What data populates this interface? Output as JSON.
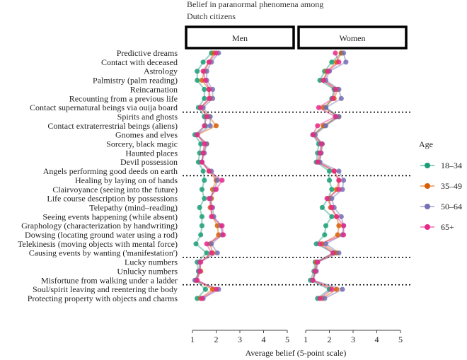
{
  "chart_data": {
    "type": "line",
    "title_lines": [
      "Belief in paranormal phenomena among",
      "Dutch citizens"
    ],
    "xlabel": "Average belief (5-point scale)",
    "xlim": [
      1,
      5
    ],
    "xticks": [
      "1",
      "2",
      "3",
      "4",
      "5"
    ],
    "facets": [
      "Men",
      "Women"
    ],
    "legend_title": "Age",
    "series": [
      {
        "name": "18–34",
        "color": "#1b9e77"
      },
      {
        "name": "35–49",
        "color": "#d95f02"
      },
      {
        "name": "50–64",
        "color": "#7570b3"
      },
      {
        "name": "65+",
        "color": "#e7298a"
      }
    ],
    "categories": [
      "Predictive dreams",
      "Contact with deceased",
      "Astrology",
      "Palmistry (palm reading)",
      "Reincarnation",
      "Recounting from a previous life",
      "Contact supernatural beings via ouija board",
      "Spirits and ghosts",
      "Contact extraterrestrial beings (aliens)",
      "Gnomes and elves",
      "Sorcery, black magic",
      "Haunted places",
      "Devil possession",
      "Angels performing good deeds on earth",
      "Healing by laying on of hands",
      "Clairvoyance (seeing into the future)",
      "Life course description by possessions",
      "Telepathy (mind–reading)",
      "Seeing events happening (while absent)",
      "Graphology (characterization by handwriting)",
      "Dowsing (locating ground water using a rod)",
      "Telekinesis (moving objects with mental force)",
      "Causing events by wanting ('manifestation')",
      "Lucky numbers",
      "Unlucky numbers",
      "Misfortune from walking under a ladder",
      "Soul/spirit leaving and reentering the body",
      "Protecting property with objects and charms"
    ],
    "group_breaks_after": [
      6,
      13,
      22,
      25
    ],
    "values": {
      "Men": {
        "18–34": [
          1.8,
          1.45,
          1.2,
          1.2,
          1.5,
          1.5,
          1.25,
          1.5,
          1.55,
          1.1,
          1.35,
          1.3,
          1.25,
          1.45,
          1.5,
          1.4,
          1.5,
          1.3,
          1.4,
          1.4,
          1.35,
          1.15,
          1.6,
          1.2,
          1.25,
          1.15,
          1.55,
          1.2
        ],
        "35–49": [
          1.9,
          1.7,
          1.5,
          1.4,
          1.7,
          1.75,
          1.35,
          1.7,
          2.0,
          1.2,
          1.6,
          1.45,
          1.4,
          1.7,
          2.0,
          1.85,
          1.8,
          1.75,
          1.85,
          2.05,
          2.1,
          1.75,
          1.85,
          1.3,
          1.35,
          1.15,
          1.85,
          1.35
        ],
        "50–64": [
          2.1,
          1.8,
          1.6,
          1.6,
          1.85,
          1.85,
          1.45,
          1.75,
          1.75,
          1.2,
          1.6,
          1.5,
          1.4,
          1.8,
          2.05,
          1.95,
          1.75,
          1.85,
          1.9,
          2.2,
          2.25,
          1.8,
          2.05,
          1.3,
          1.3,
          1.1,
          2.1,
          1.45
        ],
        "65+": [
          2.0,
          1.7,
          1.45,
          1.55,
          1.7,
          1.7,
          1.35,
          1.6,
          1.5,
          1.2,
          1.5,
          1.45,
          1.4,
          1.7,
          2.25,
          2.0,
          1.7,
          1.8,
          1.8,
          2.25,
          2.3,
          1.6,
          1.8,
          1.35,
          1.3,
          1.2,
          2.0,
          1.4
        ]
      },
      "Women": {
        "18–34": [
          2.5,
          2.1,
          1.8,
          1.6,
          2.2,
          2.1,
          1.85,
          2.3,
          1.8,
          1.3,
          1.55,
          1.5,
          1.45,
          2.0,
          2.0,
          2.1,
          1.95,
          1.7,
          2.1,
          1.85,
          1.8,
          1.45,
          2.2,
          1.4,
          1.35,
          1.2,
          2.0,
          1.5
        ],
        "35–49": [
          2.5,
          2.3,
          1.9,
          1.75,
          2.35,
          2.2,
          1.75,
          2.4,
          1.75,
          1.35,
          1.7,
          1.65,
          1.55,
          2.2,
          2.4,
          2.3,
          2.0,
          2.05,
          2.3,
          2.4,
          2.35,
          1.7,
          2.3,
          1.45,
          1.4,
          1.3,
          2.3,
          1.7
        ],
        "50–64": [
          2.6,
          2.7,
          2.0,
          1.85,
          2.4,
          2.5,
          1.85,
          2.4,
          1.85,
          1.4,
          1.7,
          1.65,
          1.6,
          2.4,
          2.6,
          2.55,
          2.1,
          2.2,
          2.5,
          2.6,
          2.55,
          1.85,
          2.4,
          1.5,
          1.45,
          1.3,
          2.55,
          1.8
        ],
        "65+": [
          2.25,
          2.4,
          1.95,
          1.75,
          2.25,
          2.15,
          1.55,
          2.25,
          1.5,
          1.3,
          1.65,
          1.6,
          1.5,
          2.2,
          2.4,
          2.4,
          1.9,
          2.1,
          2.3,
          2.6,
          2.6,
          1.6,
          2.15,
          1.5,
          1.4,
          1.3,
          2.1,
          1.6
        ]
      }
    }
  }
}
